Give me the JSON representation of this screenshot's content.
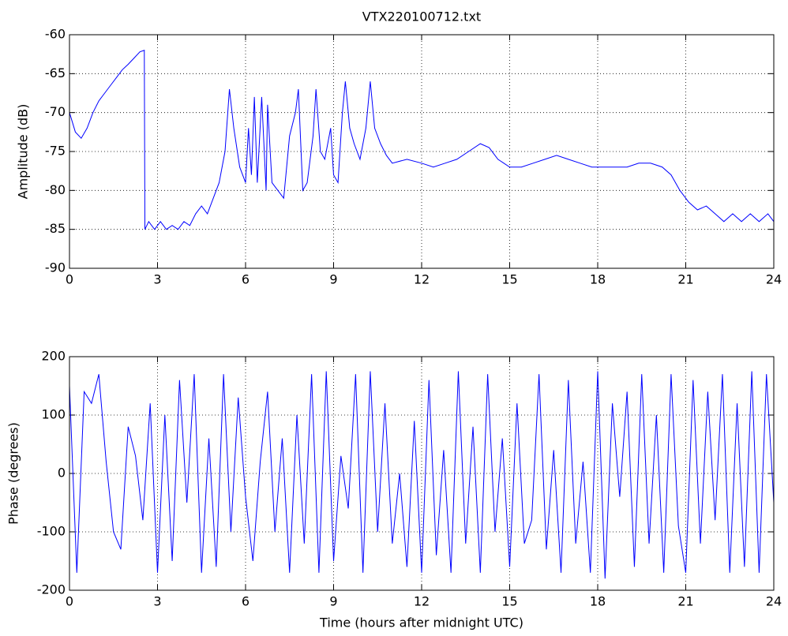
{
  "chart_data": [
    {
      "type": "line",
      "title": "VTX220100712.txt",
      "ylabel": "Amplitude (dB)",
      "color": "#0000ff",
      "grid": true,
      "xlim": [
        0,
        24
      ],
      "xticks": [
        0,
        3,
        6,
        9,
        12,
        15,
        18,
        21,
        24
      ],
      "ylim": [
        -90,
        -60
      ],
      "yticks": [
        -90,
        -85,
        -80,
        -75,
        -70,
        -65,
        -60
      ],
      "x": [
        0,
        0.2,
        0.4,
        0.6,
        0.8,
        1.0,
        1.2,
        1.4,
        1.6,
        1.8,
        2.0,
        2.2,
        2.4,
        2.55,
        2.57,
        2.7,
        2.9,
        3.1,
        3.3,
        3.5,
        3.7,
        3.9,
        4.1,
        4.3,
        4.5,
        4.7,
        4.9,
        5.1,
        5.3,
        5.45,
        5.6,
        5.8,
        6.0,
        6.1,
        6.2,
        6.3,
        6.4,
        6.55,
        6.7,
        6.75,
        6.9,
        7.1,
        7.3,
        7.5,
        7.7,
        7.8,
        7.95,
        8.1,
        8.3,
        8.4,
        8.55,
        8.7,
        8.9,
        9.0,
        9.15,
        9.3,
        9.4,
        9.55,
        9.7,
        9.9,
        10.1,
        10.25,
        10.4,
        10.6,
        10.8,
        11,
        11.5,
        12,
        12.4,
        12.8,
        13.2,
        13.6,
        14.0,
        14.3,
        14.6,
        15,
        15.4,
        15.8,
        16.2,
        16.6,
        17,
        17.4,
        17.8,
        18.2,
        18.6,
        19,
        19.4,
        19.8,
        20.2,
        20.5,
        20.8,
        21.1,
        21.4,
        21.7,
        22,
        22.3,
        22.6,
        22.9,
        23.2,
        23.5,
        23.8,
        24
      ],
      "values": [
        -70,
        -72.5,
        -73.3,
        -72,
        -70,
        -68.5,
        -67.5,
        -66.5,
        -65.5,
        -64.5,
        -63.8,
        -63,
        -62.2,
        -62,
        -85,
        -84,
        -85,
        -84,
        -85,
        -84.5,
        -85,
        -84,
        -84.5,
        -83,
        -82,
        -83,
        -81,
        -79,
        -75,
        -67,
        -72,
        -77,
        -79,
        -72,
        -78,
        -68,
        -79,
        -68,
        -80,
        -69,
        -79,
        -80,
        -81,
        -73,
        -70,
        -67,
        -80,
        -79,
        -73,
        -67,
        -75,
        -76,
        -72,
        -78,
        -79,
        -70,
        -66,
        -72,
        -74,
        -76,
        -72,
        -66,
        -72,
        -74,
        -75.5,
        -76.5,
        -76,
        -76.5,
        -77,
        -76.5,
        -76,
        -75,
        -74,
        -74.5,
        -76,
        -77,
        -77,
        -76.5,
        -76,
        -75.5,
        -76,
        -76.5,
        -77,
        -77,
        -77,
        -77,
        -76.5,
        -76.5,
        -77,
        -78,
        -80,
        -81.5,
        -82.5,
        -82,
        -83,
        -84,
        -83,
        -84,
        -83,
        -84,
        -83,
        -84
      ]
    },
    {
      "type": "line",
      "ylabel": "Phase (degrees)",
      "xlabel": "Time (hours after midnight UTC)",
      "color": "#0000ff",
      "grid": true,
      "xlim": [
        0,
        24
      ],
      "xticks": [
        0,
        3,
        6,
        9,
        12,
        15,
        18,
        21,
        24
      ],
      "ylim": [
        -200,
        200
      ],
      "yticks": [
        -200,
        -100,
        0,
        100,
        200
      ],
      "x": [
        0,
        0.25,
        0.5,
        0.75,
        1,
        1.25,
        1.5,
        1.75,
        2,
        2.25,
        2.5,
        2.75,
        3,
        3.25,
        3.5,
        3.75,
        4,
        4.25,
        4.5,
        4.75,
        5,
        5.25,
        5.5,
        5.75,
        6,
        6.25,
        6.5,
        6.75,
        7,
        7.25,
        7.5,
        7.75,
        8,
        8.25,
        8.5,
        8.75,
        9,
        9.25,
        9.5,
        9.75,
        10,
        10.25,
        10.5,
        10.75,
        11,
        11.25,
        11.5,
        11.75,
        12,
        12.25,
        12.5,
        12.75,
        13,
        13.25,
        13.5,
        13.75,
        14,
        14.25,
        14.5,
        14.75,
        15,
        15.25,
        15.5,
        15.75,
        16,
        16.25,
        16.5,
        16.75,
        17,
        17.25,
        17.5,
        17.75,
        18,
        18.25,
        18.5,
        18.75,
        19,
        19.25,
        19.5,
        19.75,
        20,
        20.25,
        20.5,
        20.75,
        21,
        21.25,
        21.5,
        21.75,
        22,
        22.25,
        22.5,
        22.75,
        23,
        23.25,
        23.5,
        23.75,
        24
      ],
      "values": [
        150,
        -170,
        140,
        120,
        170,
        20,
        -100,
        -130,
        80,
        30,
        -80,
        120,
        -170,
        100,
        -150,
        160,
        -50,
        170,
        -170,
        60,
        -160,
        170,
        -100,
        130,
        -40,
        -150,
        20,
        140,
        -100,
        60,
        -170,
        100,
        -120,
        170,
        -170,
        175,
        -150,
        30,
        -60,
        170,
        -170,
        175,
        -100,
        120,
        -120,
        0,
        -160,
        90,
        -170,
        160,
        -140,
        40,
        -170,
        175,
        -120,
        80,
        -170,
        170,
        -100,
        60,
        -160,
        120,
        -120,
        -80,
        170,
        -130,
        40,
        -170,
        160,
        -120,
        20,
        -170,
        175,
        -180,
        120,
        -40,
        140,
        -160,
        170,
        -120,
        100,
        -170,
        170,
        -90,
        -170,
        160,
        -120,
        140,
        -80,
        170,
        -170,
        120,
        -160,
        175,
        -170,
        170,
        -50
      ]
    }
  ]
}
